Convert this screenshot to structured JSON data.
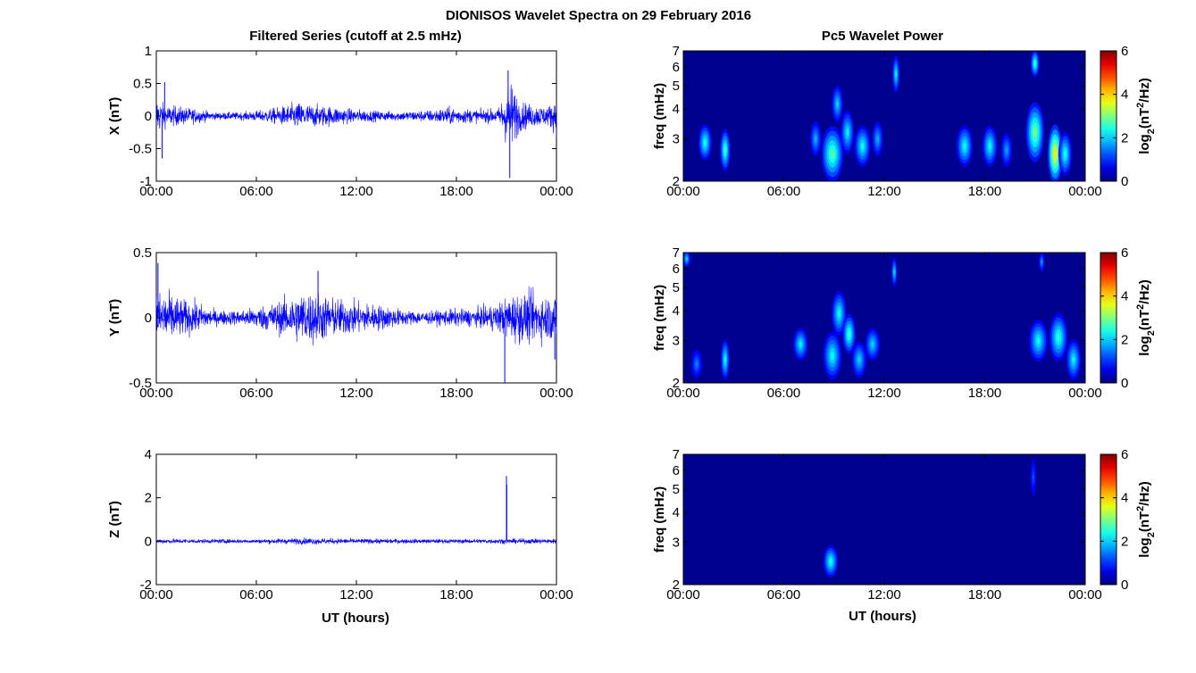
{
  "figure": {
    "title": "DIONISOS Wavelet Spectra on 29 February 2016",
    "left_title": "Filtered Series (cutoff at 2.5 mHz)",
    "right_title": "Pc5 Wavelet Power",
    "xlabel": "UT (hours)"
  },
  "x_ticks": [
    "00:00",
    "06:00",
    "12:00",
    "18:00",
    "00:00"
  ],
  "freq_ticks": [
    "2",
    "3",
    "4",
    "5",
    "6",
    "7"
  ],
  "colorbar": {
    "label_base": "log",
    "label_sub": "2",
    "label_unit": "(nT",
    "label_sup": "2",
    "label_end": "/Hz)",
    "ticks": [
      "0",
      "2",
      "4",
      "6"
    ],
    "range": [
      0,
      6
    ],
    "colormap": "jet"
  },
  "series_color": "#0000ff",
  "background_color": "#00008f",
  "chart_data": [
    {
      "type": "line",
      "name": "X",
      "ylabel": "X (nT)",
      "yticks": [
        "1",
        "0.5",
        "0",
        "-0.5",
        "-1"
      ],
      "ylim": [
        -1,
        1
      ],
      "xlim_hours": [
        0,
        24
      ],
      "envelope": [
        {
          "t": 0.0,
          "amp": 0.32
        },
        {
          "t": 0.5,
          "amp": 0.18
        },
        {
          "t": 1.5,
          "amp": 0.15
        },
        {
          "t": 2.5,
          "amp": 0.11
        },
        {
          "t": 3.5,
          "amp": 0.06
        },
        {
          "t": 5.0,
          "amp": 0.06
        },
        {
          "t": 6.5,
          "amp": 0.1
        },
        {
          "t": 7.5,
          "amp": 0.15
        },
        {
          "t": 8.5,
          "amp": 0.22
        },
        {
          "t": 9.5,
          "amp": 0.18
        },
        {
          "t": 10.5,
          "amp": 0.16
        },
        {
          "t": 11.5,
          "amp": 0.12
        },
        {
          "t": 12.5,
          "amp": 0.1
        },
        {
          "t": 13.5,
          "amp": 0.08
        },
        {
          "t": 15.0,
          "amp": 0.08
        },
        {
          "t": 16.5,
          "amp": 0.1
        },
        {
          "t": 17.5,
          "amp": 0.14
        },
        {
          "t": 18.5,
          "amp": 0.12
        },
        {
          "t": 19.5,
          "amp": 0.1
        },
        {
          "t": 20.5,
          "amp": 0.12
        },
        {
          "t": 21.0,
          "amp": 0.45
        },
        {
          "t": 21.3,
          "amp": 0.55
        },
        {
          "t": 21.8,
          "amp": 0.25
        },
        {
          "t": 22.5,
          "amp": 0.18
        },
        {
          "t": 23.5,
          "amp": 0.16
        },
        {
          "t": 24.0,
          "amp": 0.3
        }
      ],
      "spikes": [
        {
          "t": 21.1,
          "y": 0.7
        },
        {
          "t": 21.2,
          "y": -0.95
        },
        {
          "t": 0.35,
          "y": -0.65
        },
        {
          "t": 0.5,
          "y": 0.52
        }
      ]
    },
    {
      "type": "line",
      "name": "Y",
      "ylabel": "Y (nT)",
      "yticks": [
        "0.5",
        "0",
        "-0.5"
      ],
      "ylim": [
        -0.5,
        0.5
      ],
      "xlim_hours": [
        0,
        24
      ],
      "envelope": [
        {
          "t": 0.0,
          "amp": 0.2
        },
        {
          "t": 0.5,
          "amp": 0.22
        },
        {
          "t": 1.5,
          "amp": 0.15
        },
        {
          "t": 2.5,
          "amp": 0.12
        },
        {
          "t": 3.5,
          "amp": 0.06
        },
        {
          "t": 5.0,
          "amp": 0.06
        },
        {
          "t": 6.5,
          "amp": 0.1
        },
        {
          "t": 7.5,
          "amp": 0.14
        },
        {
          "t": 8.5,
          "amp": 0.2
        },
        {
          "t": 9.5,
          "amp": 0.22
        },
        {
          "t": 10.5,
          "amp": 0.16
        },
        {
          "t": 11.5,
          "amp": 0.14
        },
        {
          "t": 12.5,
          "amp": 0.12
        },
        {
          "t": 13.5,
          "amp": 0.1
        },
        {
          "t": 15.0,
          "amp": 0.06
        },
        {
          "t": 16.5,
          "amp": 0.05
        },
        {
          "t": 17.5,
          "amp": 0.07
        },
        {
          "t": 18.5,
          "amp": 0.07
        },
        {
          "t": 19.5,
          "amp": 0.08
        },
        {
          "t": 20.5,
          "amp": 0.12
        },
        {
          "t": 21.0,
          "amp": 0.16
        },
        {
          "t": 21.5,
          "amp": 0.2
        },
        {
          "t": 22.5,
          "amp": 0.2
        },
        {
          "t": 23.5,
          "amp": 0.18
        },
        {
          "t": 24.0,
          "amp": 0.2
        }
      ],
      "spikes": [
        {
          "t": 0.1,
          "y": 0.42
        },
        {
          "t": 20.9,
          "y": -0.5
        },
        {
          "t": 9.7,
          "y": 0.36
        },
        {
          "t": 23.9,
          "y": -0.32
        }
      ]
    },
    {
      "type": "line",
      "name": "Z",
      "ylabel": "Z (nT)",
      "yticks": [
        "4",
        "2",
        "0",
        "-2"
      ],
      "ylim": [
        -2,
        4
      ],
      "xlim_hours": [
        0,
        24
      ],
      "envelope": [
        {
          "t": 0.0,
          "amp": 0.12
        },
        {
          "t": 3.0,
          "amp": 0.1
        },
        {
          "t": 6.0,
          "amp": 0.1
        },
        {
          "t": 9.0,
          "amp": 0.16
        },
        {
          "t": 12.0,
          "amp": 0.12
        },
        {
          "t": 18.0,
          "amp": 0.1
        },
        {
          "t": 21.0,
          "amp": 0.12
        },
        {
          "t": 24.0,
          "amp": 0.12
        }
      ],
      "spikes": [
        {
          "t": 21.0,
          "y": 3.0
        },
        {
          "t": 21.02,
          "y": 2.6
        }
      ]
    },
    {
      "type": "heatmap",
      "name": "X wavelet power",
      "ylabel": "freq (mHz)",
      "ylim": [
        2,
        7
      ],
      "xlim_hours": [
        0,
        24
      ],
      "blobs": [
        {
          "t": 1.3,
          "f": 2.9,
          "w": 0.18,
          "h": 0.8,
          "v": 2.4
        },
        {
          "t": 2.5,
          "f": 2.7,
          "w": 0.14,
          "h": 0.9,
          "v": 2.6
        },
        {
          "t": 7.9,
          "f": 3.0,
          "w": 0.15,
          "h": 0.8,
          "v": 1.8
        },
        {
          "t": 8.9,
          "f": 2.6,
          "w": 0.3,
          "h": 1.2,
          "v": 2.8
        },
        {
          "t": 9.2,
          "f": 4.2,
          "w": 0.15,
          "h": 1.2,
          "v": 2.0
        },
        {
          "t": 9.8,
          "f": 3.2,
          "w": 0.18,
          "h": 1.1,
          "v": 2.2
        },
        {
          "t": 10.7,
          "f": 2.8,
          "w": 0.22,
          "h": 0.9,
          "v": 2.3
        },
        {
          "t": 11.6,
          "f": 3.0,
          "w": 0.15,
          "h": 0.8,
          "v": 1.8
        },
        {
          "t": 12.7,
          "f": 5.6,
          "w": 0.1,
          "h": 1.6,
          "v": 2.2
        },
        {
          "t": 16.8,
          "f": 2.8,
          "w": 0.22,
          "h": 0.9,
          "v": 2.3
        },
        {
          "t": 18.3,
          "f": 2.8,
          "w": 0.2,
          "h": 0.9,
          "v": 2.3
        },
        {
          "t": 19.3,
          "f": 2.7,
          "w": 0.15,
          "h": 0.7,
          "v": 1.7
        },
        {
          "t": 21.0,
          "f": 3.2,
          "w": 0.25,
          "h": 1.6,
          "v": 3.0
        },
        {
          "t": 21.0,
          "f": 6.2,
          "w": 0.12,
          "h": 1.2,
          "v": 2.6
        },
        {
          "t": 22.2,
          "f": 2.6,
          "w": 0.2,
          "h": 1.4,
          "v": 3.9
        },
        {
          "t": 22.8,
          "f": 2.6,
          "w": 0.18,
          "h": 0.9,
          "v": 2.4
        }
      ]
    },
    {
      "type": "heatmap",
      "name": "Y wavelet power",
      "ylabel": "freq (mHz)",
      "ylim": [
        2,
        7
      ],
      "xlim_hours": [
        0,
        24
      ],
      "blobs": [
        {
          "t": 0.2,
          "f": 6.6,
          "w": 0.1,
          "h": 0.6,
          "v": 2.0
        },
        {
          "t": 0.8,
          "f": 2.4,
          "w": 0.15,
          "h": 0.5,
          "v": 1.5
        },
        {
          "t": 2.5,
          "f": 2.5,
          "w": 0.12,
          "h": 0.8,
          "v": 2.3
        },
        {
          "t": 7.0,
          "f": 2.9,
          "w": 0.2,
          "h": 0.7,
          "v": 2.2
        },
        {
          "t": 8.9,
          "f": 2.6,
          "w": 0.25,
          "h": 1.0,
          "v": 2.3
        },
        {
          "t": 9.3,
          "f": 3.9,
          "w": 0.2,
          "h": 1.4,
          "v": 2.3
        },
        {
          "t": 9.9,
          "f": 3.2,
          "w": 0.18,
          "h": 1.0,
          "v": 2.6
        },
        {
          "t": 10.5,
          "f": 2.5,
          "w": 0.2,
          "h": 0.7,
          "v": 2.0
        },
        {
          "t": 11.3,
          "f": 2.9,
          "w": 0.2,
          "h": 0.7,
          "v": 2.0
        },
        {
          "t": 12.6,
          "f": 5.8,
          "w": 0.08,
          "h": 1.2,
          "v": 2.0
        },
        {
          "t": 21.2,
          "f": 3.0,
          "w": 0.25,
          "h": 1.0,
          "v": 2.3
        },
        {
          "t": 22.4,
          "f": 3.1,
          "w": 0.25,
          "h": 1.2,
          "v": 2.5
        },
        {
          "t": 23.3,
          "f": 2.5,
          "w": 0.2,
          "h": 0.8,
          "v": 2.2
        },
        {
          "t": 21.4,
          "f": 6.4,
          "w": 0.08,
          "h": 0.8,
          "v": 1.6
        }
      ]
    },
    {
      "type": "heatmap",
      "name": "Z wavelet power",
      "ylabel": "freq (mHz)",
      "ylim": [
        2,
        7
      ],
      "xlim_hours": [
        0,
        24
      ],
      "blobs": [
        {
          "t": 8.8,
          "f": 2.5,
          "w": 0.2,
          "h": 0.6,
          "v": 2.4
        },
        {
          "t": 20.9,
          "f": 5.6,
          "w": 0.08,
          "h": 1.6,
          "v": 1.2
        }
      ]
    }
  ]
}
